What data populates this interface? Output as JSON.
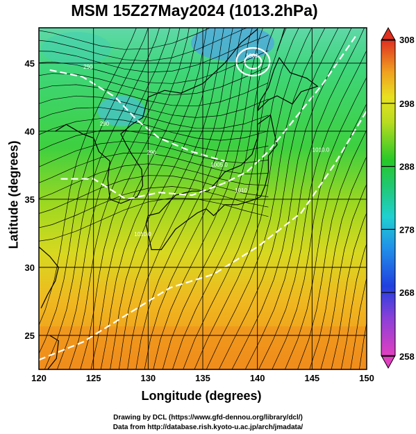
{
  "chart_data": {
    "type": "heatmap",
    "title": "MSM 15Z27May2024 (1013.2hPa)",
    "xlabel": "Longitude (degrees)",
    "ylabel": "Latitude  (degrees)",
    "xlim": [
      120,
      150
    ],
    "ylim": [
      22.5,
      47.6
    ],
    "x_ticks": [
      120,
      125,
      130,
      135,
      140,
      145,
      150
    ],
    "y_ticks": [
      25,
      30,
      35,
      40,
      45
    ],
    "grid": true,
    "colorbar": {
      "min": 258,
      "max": 308,
      "ticks": [
        258,
        268,
        278,
        288,
        298,
        308
      ],
      "position": "right"
    },
    "field": "temperature",
    "contour_labels": [
      {
        "lon": 124.5,
        "lat": 44.6,
        "text": "290"
      },
      {
        "lon": 126.0,
        "lat": 40.4,
        "text": "290"
      },
      {
        "lon": 130.3,
        "lat": 38.3,
        "text": "290"
      },
      {
        "lon": 136.5,
        "lat": 37.4,
        "text": "1005.0"
      },
      {
        "lon": 139.5,
        "lat": 45.4,
        "text": "1000"
      },
      {
        "lon": 145.8,
        "lat": 38.5,
        "text": "1010.0"
      },
      {
        "lon": 129.5,
        "lat": 32.3,
        "text": "1010.0"
      },
      {
        "lon": 138.5,
        "lat": 35.5,
        "text": "1010"
      }
    ]
  },
  "credits": {
    "line1": "Drawing by DCL (https://www.gfd-dennou.org/library/dcl/)",
    "line2": "Data from http://database.rish.kyoto-u.ac.jp/arch/jmadata/"
  },
  "colors": {
    "cold": "#d43cd2",
    "cool": "#2c40d8",
    "cyan": "#20d0c8",
    "green": "#28c828",
    "yellow": "#e0e020",
    "orange": "#f0a020",
    "hot": "#e03020"
  }
}
